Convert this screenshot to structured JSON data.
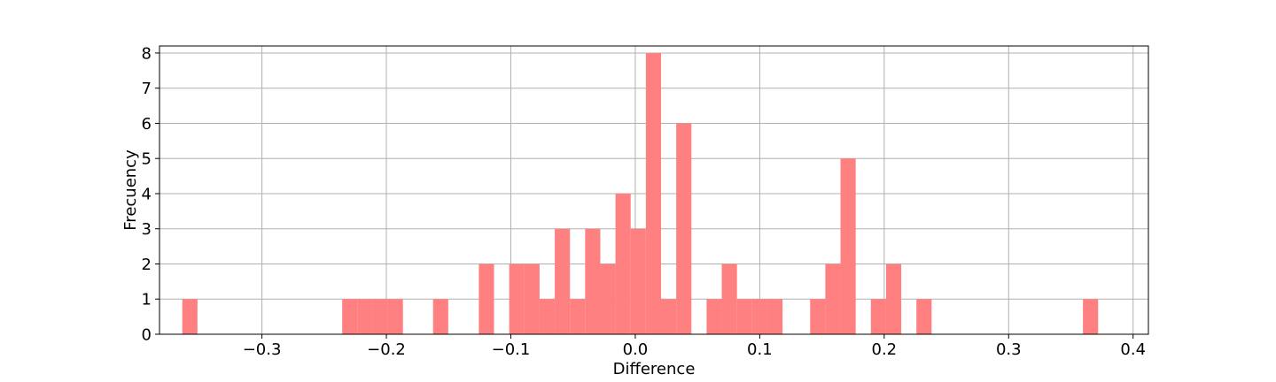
{
  "chart_data": {
    "type": "bar",
    "title": "",
    "xlabel": "Difference",
    "ylabel": "Frecuency",
    "xlim": [
      -0.3823,
      0.4123
    ],
    "ylim": [
      0,
      8.2
    ],
    "grid": true,
    "bar_color": "#ff8080",
    "bin_width": 0.0122,
    "x_ticks": [
      {
        "value": -0.3,
        "label": "−0.3"
      },
      {
        "value": -0.2,
        "label": "−0.2"
      },
      {
        "value": -0.1,
        "label": "−0.1"
      },
      {
        "value": 0.0,
        "label": "0.0"
      },
      {
        "value": 0.1,
        "label": "0.1"
      },
      {
        "value": 0.2,
        "label": "0.2"
      },
      {
        "value": 0.3,
        "label": "0.3"
      },
      {
        "value": 0.4,
        "label": "0.4"
      }
    ],
    "y_ticks": [
      {
        "value": 0,
        "label": "0"
      },
      {
        "value": 1,
        "label": "1"
      },
      {
        "value": 2,
        "label": "2"
      },
      {
        "value": 3,
        "label": "3"
      },
      {
        "value": 4,
        "label": "4"
      },
      {
        "value": 5,
        "label": "5"
      },
      {
        "value": 6,
        "label": "6"
      },
      {
        "value": 7,
        "label": "7"
      },
      {
        "value": 8,
        "label": "8"
      }
    ],
    "bins": [
      {
        "x": -0.364,
        "count": 1
      },
      {
        "x": -0.2355,
        "count": 1
      },
      {
        "x": -0.2233,
        "count": 1
      },
      {
        "x": -0.2111,
        "count": 1
      },
      {
        "x": -0.1989,
        "count": 1
      },
      {
        "x": -0.1625,
        "count": 1
      },
      {
        "x": -0.1257,
        "count": 2
      },
      {
        "x": -0.1013,
        "count": 2
      },
      {
        "x": -0.0891,
        "count": 2
      },
      {
        "x": -0.0769,
        "count": 1
      },
      {
        "x": -0.0647,
        "count": 3
      },
      {
        "x": -0.0525,
        "count": 1
      },
      {
        "x": -0.0403,
        "count": 3
      },
      {
        "x": -0.0281,
        "count": 2
      },
      {
        "x": -0.0159,
        "count": 4
      },
      {
        "x": -0.0037,
        "count": 3
      },
      {
        "x": 0.0085,
        "count": 8
      },
      {
        "x": 0.0207,
        "count": 1
      },
      {
        "x": 0.0329,
        "count": 6
      },
      {
        "x": 0.0573,
        "count": 1
      },
      {
        "x": 0.0695,
        "count": 2
      },
      {
        "x": 0.0817,
        "count": 1
      },
      {
        "x": 0.0939,
        "count": 1
      },
      {
        "x": 0.1061,
        "count": 1
      },
      {
        "x": 0.1405,
        "count": 1
      },
      {
        "x": 0.1527,
        "count": 2
      },
      {
        "x": 0.1649,
        "count": 5
      },
      {
        "x": 0.1893,
        "count": 1
      },
      {
        "x": 0.2015,
        "count": 2
      },
      {
        "x": 0.2259,
        "count": 1
      },
      {
        "x": 0.3597,
        "count": 1
      }
    ]
  }
}
